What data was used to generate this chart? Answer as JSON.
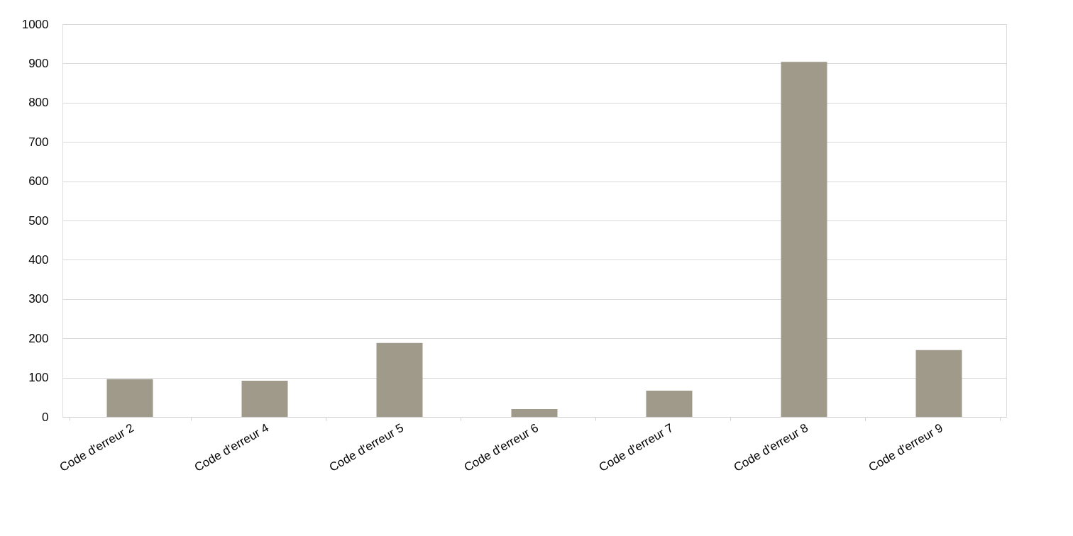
{
  "chart_data": {
    "type": "bar",
    "categories": [
      "Code d'erreur 2",
      "Code d'erreur 4",
      "Code d'erreur 5",
      "Code d'erreur 6",
      "Code d'erreur 7",
      "Code d'erreur 8",
      "Code d'erreur 9"
    ],
    "values": [
      96,
      92,
      188,
      20,
      67,
      904,
      170
    ],
    "color": "#a09a8a",
    "ylim": [
      0,
      1000
    ],
    "yticks": [
      0,
      100,
      200,
      300,
      400,
      500,
      600,
      700,
      800,
      900,
      1000
    ],
    "grid": "y"
  }
}
